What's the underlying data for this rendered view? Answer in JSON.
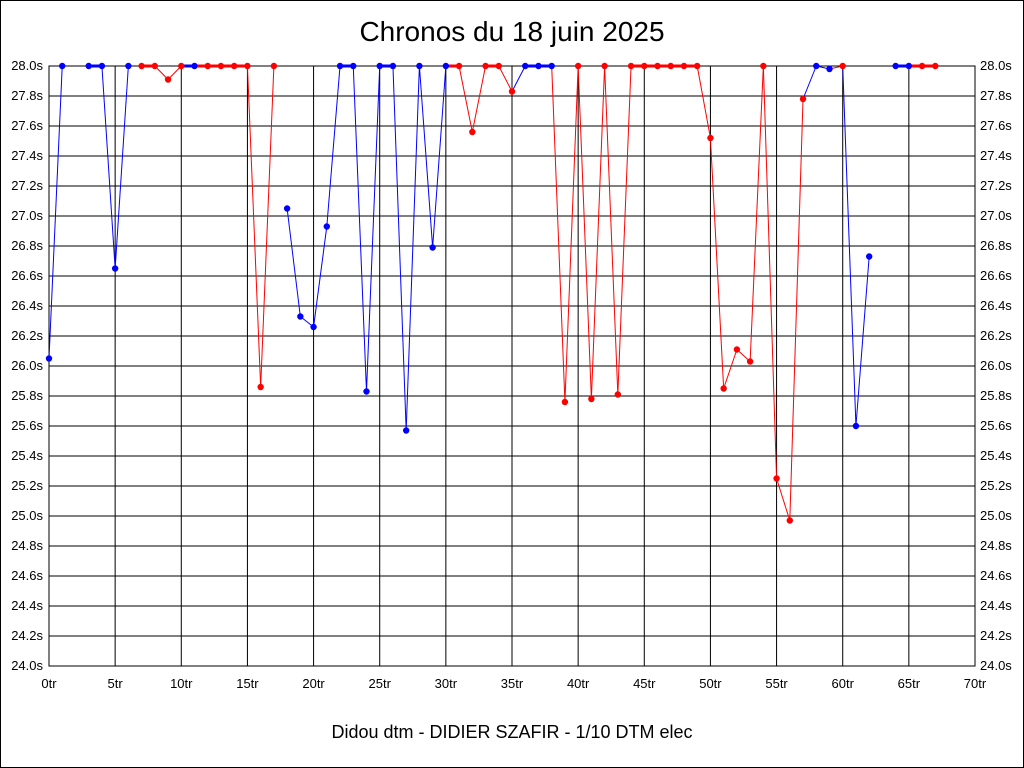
{
  "chart_data": {
    "type": "line",
    "title": "Chronos du 18 juin 2025",
    "xlabel": "Didou dtm - DIDIER SZAFIR - 1/10 DTM elec",
    "ylabel": "",
    "xlim": [
      0,
      70
    ],
    "ylim": [
      24.0,
      28.0
    ],
    "grid": true,
    "x_ticks": [
      {
        "value": 0,
        "label": "0tr"
      },
      {
        "value": 5,
        "label": "5tr"
      },
      {
        "value": 10,
        "label": "10tr"
      },
      {
        "value": 15,
        "label": "15tr"
      },
      {
        "value": 20,
        "label": "20tr"
      },
      {
        "value": 25,
        "label": "25tr"
      },
      {
        "value": 30,
        "label": "30tr"
      },
      {
        "value": 35,
        "label": "35tr"
      },
      {
        "value": 40,
        "label": "40tr"
      },
      {
        "value": 45,
        "label": "45tr"
      },
      {
        "value": 50,
        "label": "50tr"
      },
      {
        "value": 55,
        "label": "55tr"
      },
      {
        "value": 60,
        "label": "60tr"
      },
      {
        "value": 65,
        "label": "65tr"
      },
      {
        "value": 70,
        "label": "70tr"
      }
    ],
    "y_ticks": [
      {
        "value": 24.0,
        "label": "24.0s"
      },
      {
        "value": 24.2,
        "label": "24.2s"
      },
      {
        "value": 24.4,
        "label": "24.4s"
      },
      {
        "value": 24.6,
        "label": "24.6s"
      },
      {
        "value": 24.8,
        "label": "24.8s"
      },
      {
        "value": 25.0,
        "label": "25.0s"
      },
      {
        "value": 25.2,
        "label": "25.2s"
      },
      {
        "value": 25.4,
        "label": "25.4s"
      },
      {
        "value": 25.6,
        "label": "25.6s"
      },
      {
        "value": 25.8,
        "label": "25.8s"
      },
      {
        "value": 26.0,
        "label": "26.0s"
      },
      {
        "value": 26.2,
        "label": "26.2s"
      },
      {
        "value": 26.4,
        "label": "26.4s"
      },
      {
        "value": 26.6,
        "label": "26.6s"
      },
      {
        "value": 26.8,
        "label": "26.8s"
      },
      {
        "value": 27.0,
        "label": "27.0s"
      },
      {
        "value": 27.2,
        "label": "27.2s"
      },
      {
        "value": 27.4,
        "label": "27.4s"
      },
      {
        "value": 27.6,
        "label": "27.6s"
      },
      {
        "value": 27.8,
        "label": "27.8s"
      },
      {
        "value": 28.0,
        "label": "28.0s"
      }
    ],
    "colors": {
      "blue": "#0000ff",
      "red": "#ff0000",
      "grid": "#000000"
    },
    "points": [
      {
        "x": 0,
        "y": 26.05,
        "c": "blue"
      },
      {
        "x": 1,
        "y": 28.0,
        "c": "blue"
      },
      {
        "x": 3,
        "y": 28.0,
        "c": "blue"
      },
      {
        "x": 4,
        "y": 28.0,
        "c": "blue"
      },
      {
        "x": 5,
        "y": 26.65,
        "c": "blue"
      },
      {
        "x": 6,
        "y": 28.0,
        "c": "blue"
      },
      {
        "x": 7,
        "y": 28.0,
        "c": "red"
      },
      {
        "x": 8,
        "y": 28.0,
        "c": "red"
      },
      {
        "x": 9,
        "y": 27.91,
        "c": "red"
      },
      {
        "x": 10,
        "y": 28.0,
        "c": "red"
      },
      {
        "x": 11,
        "y": 28.0,
        "c": "blue"
      },
      {
        "x": 12,
        "y": 28.0,
        "c": "red"
      },
      {
        "x": 13,
        "y": 28.0,
        "c": "red"
      },
      {
        "x": 14,
        "y": 28.0,
        "c": "red"
      },
      {
        "x": 15,
        "y": 28.0,
        "c": "red"
      },
      {
        "x": 16,
        "y": 25.86,
        "c": "red"
      },
      {
        "x": 17,
        "y": 28.0,
        "c": "red"
      },
      {
        "x": 18,
        "y": 27.05,
        "c": "blue"
      },
      {
        "x": 19,
        "y": 26.33,
        "c": "blue"
      },
      {
        "x": 20,
        "y": 26.26,
        "c": "blue"
      },
      {
        "x": 21,
        "y": 26.93,
        "c": "blue"
      },
      {
        "x": 22,
        "y": 28.0,
        "c": "blue"
      },
      {
        "x": 23,
        "y": 28.0,
        "c": "blue"
      },
      {
        "x": 24,
        "y": 25.83,
        "c": "blue"
      },
      {
        "x": 25,
        "y": 28.0,
        "c": "blue"
      },
      {
        "x": 26,
        "y": 28.0,
        "c": "blue"
      },
      {
        "x": 27,
        "y": 25.57,
        "c": "blue"
      },
      {
        "x": 28,
        "y": 28.0,
        "c": "blue"
      },
      {
        "x": 29,
        "y": 26.79,
        "c": "blue"
      },
      {
        "x": 30,
        "y": 28.0,
        "c": "blue"
      },
      {
        "x": 31,
        "y": 28.0,
        "c": "red"
      },
      {
        "x": 32,
        "y": 27.56,
        "c": "red"
      },
      {
        "x": 33,
        "y": 28.0,
        "c": "red"
      },
      {
        "x": 34,
        "y": 28.0,
        "c": "red"
      },
      {
        "x": 35,
        "y": 27.83,
        "c": "red"
      },
      {
        "x": 36,
        "y": 28.0,
        "c": "blue"
      },
      {
        "x": 37,
        "y": 28.0,
        "c": "blue"
      },
      {
        "x": 38,
        "y": 28.0,
        "c": "blue"
      },
      {
        "x": 39,
        "y": 25.76,
        "c": "red"
      },
      {
        "x": 40,
        "y": 28.0,
        "c": "red"
      },
      {
        "x": 41,
        "y": 25.78,
        "c": "red"
      },
      {
        "x": 42,
        "y": 28.0,
        "c": "red"
      },
      {
        "x": 43,
        "y": 25.81,
        "c": "red"
      },
      {
        "x": 44,
        "y": 28.0,
        "c": "red"
      },
      {
        "x": 45,
        "y": 28.0,
        "c": "red"
      },
      {
        "x": 46,
        "y": 28.0,
        "c": "red"
      },
      {
        "x": 47,
        "y": 28.0,
        "c": "red"
      },
      {
        "x": 48,
        "y": 28.0,
        "c": "red"
      },
      {
        "x": 49,
        "y": 28.0,
        "c": "red"
      },
      {
        "x": 50,
        "y": 27.52,
        "c": "red"
      },
      {
        "x": 51,
        "y": 25.85,
        "c": "red"
      },
      {
        "x": 52,
        "y": 26.11,
        "c": "red"
      },
      {
        "x": 53,
        "y": 26.03,
        "c": "red"
      },
      {
        "x": 54,
        "y": 28.0,
        "c": "red"
      },
      {
        "x": 55,
        "y": 25.25,
        "c": "red"
      },
      {
        "x": 56,
        "y": 24.97,
        "c": "red"
      },
      {
        "x": 57,
        "y": 27.78,
        "c": "red"
      },
      {
        "x": 58,
        "y": 28.0,
        "c": "blue"
      },
      {
        "x": 59,
        "y": 27.98,
        "c": "blue"
      },
      {
        "x": 60,
        "y": 28.0,
        "c": "red"
      },
      {
        "x": 61,
        "y": 25.6,
        "c": "blue"
      },
      {
        "x": 62,
        "y": 26.73,
        "c": "blue"
      },
      {
        "x": 64,
        "y": 28.0,
        "c": "blue"
      },
      {
        "x": 65,
        "y": 28.0,
        "c": "blue"
      },
      {
        "x": 66,
        "y": 28.0,
        "c": "red"
      },
      {
        "x": 67,
        "y": 28.0,
        "c": "red"
      }
    ],
    "line_breaks_after": [
      1,
      6,
      17,
      62
    ]
  }
}
